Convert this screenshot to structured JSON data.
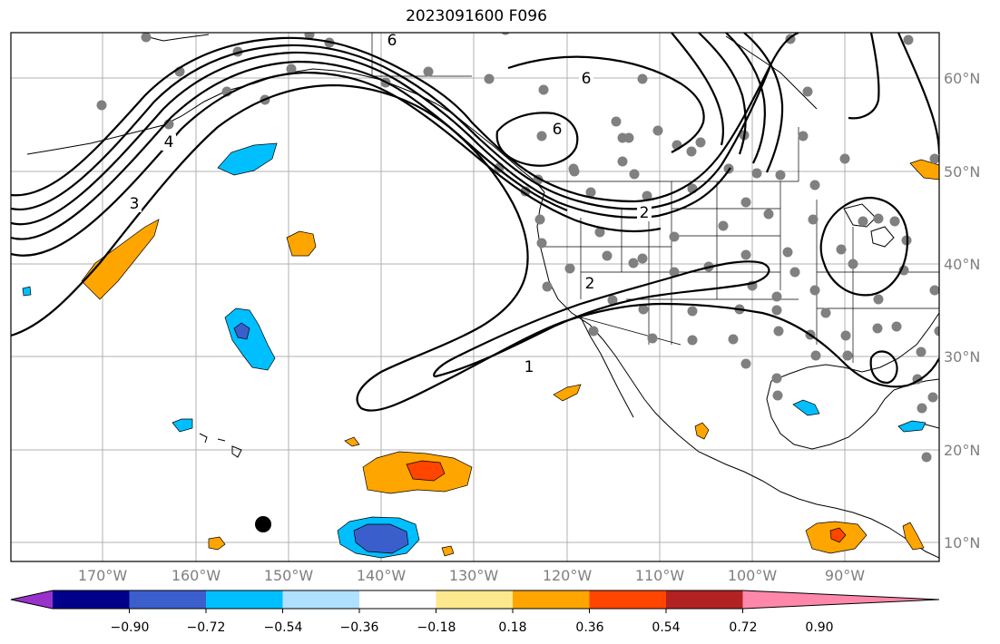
{
  "title": "2023091600 F096",
  "lat_labels": [
    "60°N",
    "50°N",
    "40°N",
    "30°N",
    "20°N",
    "10°N"
  ],
  "lon_labels": [
    "170°W",
    "160°W",
    "150°W",
    "140°W",
    "130°W",
    "120°W",
    "110°W",
    "100°W",
    "90°W"
  ],
  "contour_labels": [
    "6",
    "6",
    "6",
    "4",
    "3",
    "2",
    "2",
    "1"
  ],
  "colorbar": {
    "colors": [
      "#9932cc",
      "#00008b",
      "#3a5fcd",
      "#00bfff",
      "#b0e0ff",
      "#ffffff",
      "#fde98d",
      "#ffa500",
      "#ff4500",
      "#b22222",
      "#ff88aa"
    ],
    "tick_labels": [
      "−0.90",
      "−0.72",
      "−0.54",
      "−0.36",
      "−0.18",
      "0.18",
      "0.36",
      "0.54",
      "0.72",
      "0.90"
    ]
  }
}
